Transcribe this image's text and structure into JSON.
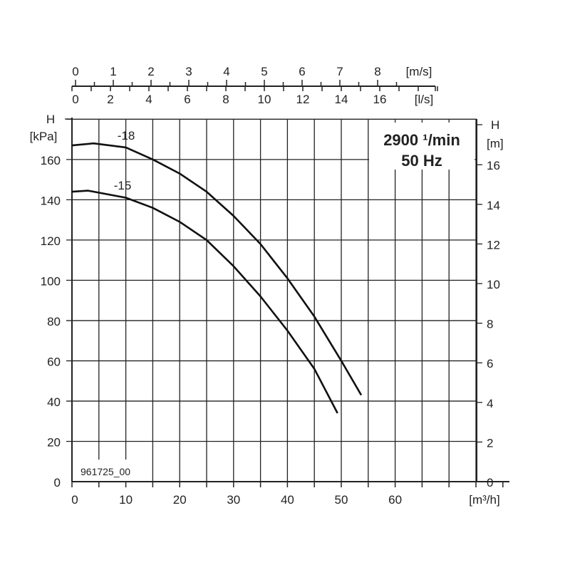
{
  "chart_data": {
    "type": "line",
    "title_lines": [
      "2900 ¹/min",
      "50 Hz"
    ],
    "code": "961725_00",
    "x_axis": {
      "label": "[m³/h]",
      "range": [
        0,
        75
      ],
      "ticks": [
        0,
        10,
        20,
        30,
        40,
        50,
        60
      ],
      "grid_step": 5
    },
    "y_left": {
      "label_top": "H",
      "label_unit": "[kPa]",
      "range": [
        0,
        180
      ],
      "ticks": [
        0,
        20,
        40,
        60,
        80,
        100,
        120,
        140,
        160
      ]
    },
    "y_right": {
      "label_top": "H",
      "label_unit": "[m]",
      "range": [
        0,
        18.35
      ],
      "ticks": [
        0,
        2,
        4,
        6,
        8,
        10,
        12,
        14,
        16
      ]
    },
    "top_axis_velocity": {
      "label": "[m/s]",
      "ticks": [
        0,
        1,
        2,
        3,
        4,
        5,
        6,
        7,
        8
      ]
    },
    "top_axis_flow": {
      "label": "[l/s]",
      "ticks": [
        0,
        2,
        4,
        6,
        8,
        10,
        12,
        14,
        16
      ]
    },
    "series": [
      {
        "name": "-18",
        "x": [
          0,
          4,
          10,
          15,
          20,
          25,
          30,
          35,
          40,
          45,
          50,
          53.7
        ],
        "y": [
          167,
          168,
          166,
          160,
          153,
          144,
          132,
          118,
          101,
          82,
          60,
          43
        ]
      },
      {
        "name": "-15",
        "x": [
          0,
          3,
          10,
          15,
          20,
          25,
          30,
          35,
          40,
          45,
          49.3
        ],
        "y": [
          144,
          144.5,
          141,
          136,
          129,
          120,
          107,
          92,
          75,
          56,
          34
        ]
      }
    ]
  }
}
